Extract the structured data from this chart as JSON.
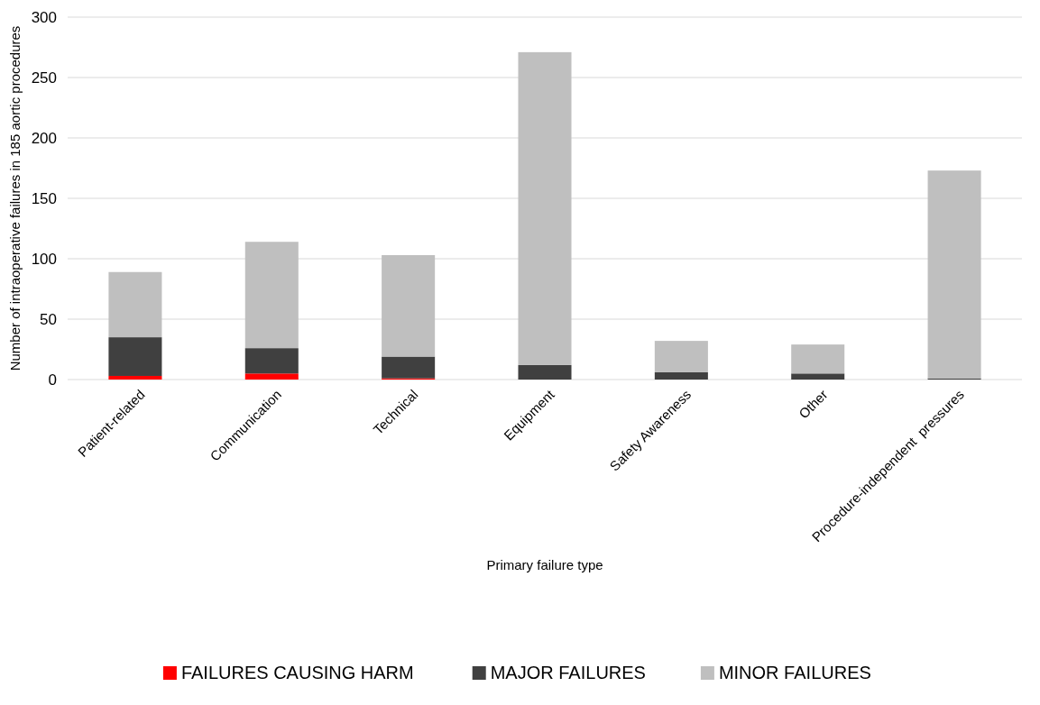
{
  "chart_data": {
    "type": "bar",
    "stacked": true,
    "xlabel": "Primary failure type",
    "ylabel": "Number of intraoperative failures in 185 aortic procedures",
    "categories": [
      "Patient-related",
      "Communication",
      "Technical",
      "Equipment",
      "Safety Awareness",
      "Other",
      "Procedure-independent  pressures"
    ],
    "series": [
      {
        "name": "FAILURES CAUSING HARM",
        "color": "#ff0000",
        "values": [
          3,
          5,
          1,
          0,
          0,
          0,
          0
        ]
      },
      {
        "name": "MAJOR FAILURES",
        "color": "#404040",
        "values": [
          32,
          21,
          18,
          12,
          6,
          5,
          1
        ]
      },
      {
        "name": "MINOR FAILURES",
        "color": "#bfbfbf",
        "values": [
          54,
          88,
          84,
          259,
          26,
          24,
          172
        ]
      }
    ],
    "ylim": [
      0,
      300
    ],
    "yticks": [
      0,
      50,
      100,
      150,
      200,
      250,
      300
    ],
    "grid": "y",
    "legend": "bottom"
  }
}
